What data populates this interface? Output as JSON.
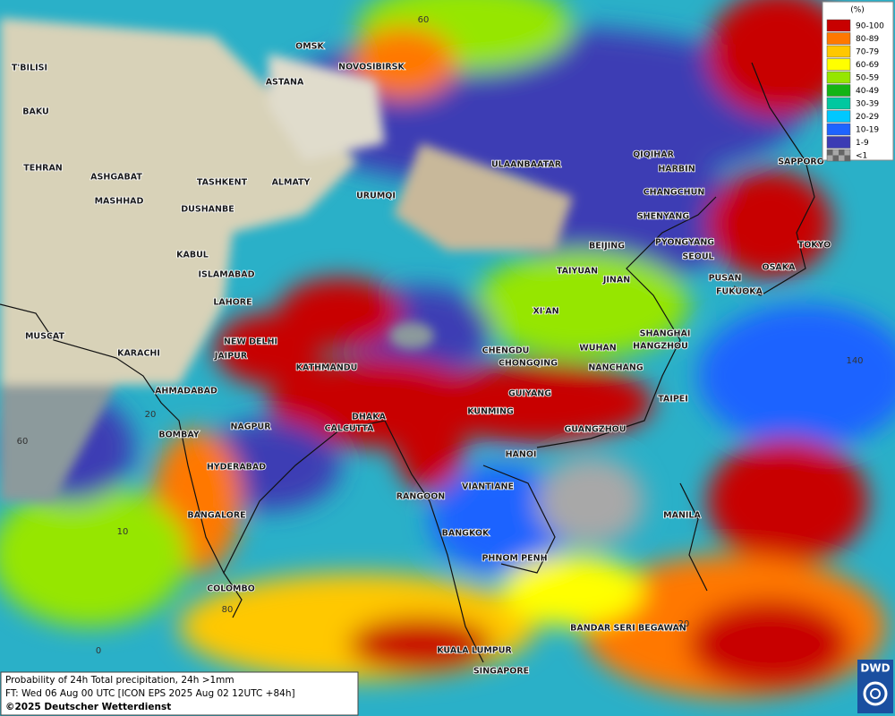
{
  "map": {
    "cities": [
      "OMSK",
      "NOVOSIBIRSK",
      "ASTANA",
      "T'BILISI",
      "BAKU",
      "TEHRAN",
      "ASHGABAT",
      "MASHHAD",
      "TASHKENT",
      "ALMATY",
      "URUMQI",
      "DUSHANBE",
      "KABUL",
      "ISLAMABAD",
      "LAHORE",
      "MUSCAT",
      "KARACHI",
      "NEW DELHI",
      "JAIPUR",
      "KATHMANDU",
      "AHMADABAD",
      "DHAKA",
      "CALCUTTA",
      "NAGPUR",
      "BOMBAY",
      "HYDERABAD",
      "BANGALORE",
      "COLOMBO",
      "ULAANBAATAR",
      "QIQIHAR",
      "HARBIN",
      "CHANGCHUN",
      "SHENYANG",
      "BEIJING",
      "PYONGYANG",
      "SEOUL",
      "SAPPORO",
      "TOKYO",
      "OSAKA",
      "PUSAN",
      "FUKUOKA",
      "TAIYUAN",
      "JINAN",
      "XI'AN",
      "CHENGDU",
      "CHONGQING",
      "WUHAN",
      "SHANGHAI",
      "HANGZHOU",
      "NANCHANG",
      "GUIYANG",
      "KUNMING",
      "TAIPEI",
      "GUANGZHOU",
      "HANOI",
      "VIANTIANE",
      "RANGOON",
      "BANGKOK",
      "PHNOM PENH",
      "MANILA",
      "BANDAR SERI BEGAWAN",
      "KUALA LUMPUR",
      "SINGAPORE"
    ],
    "grid_labels": [
      "60",
      "60",
      "20",
      "10",
      "0",
      "80",
      "20",
      "140"
    ]
  },
  "legend": {
    "title": "(%)",
    "entries": [
      {
        "label": "90-100",
        "color": "#c80000"
      },
      {
        "label": "80-89",
        "color": "#ff7800"
      },
      {
        "label": "70-79",
        "color": "#ffc800"
      },
      {
        "label": "60-69",
        "color": "#ffff00"
      },
      {
        "label": "50-59",
        "color": "#96e600"
      },
      {
        "label": "40-49",
        "color": "#14b414"
      },
      {
        "label": "30-39",
        "color": "#00c8a0"
      },
      {
        "label": "20-29",
        "color": "#00c8ff"
      },
      {
        "label": "10-19",
        "color": "#1e64ff"
      },
      {
        "label": "1-9",
        "color": "#3c3cb4"
      },
      {
        "label": "<1",
        "color": "#a8a8a8"
      }
    ]
  },
  "footer": {
    "lines": [
      "Probability of 24h Total precipitation, 24h >1mm",
      "FT: Wed 06 Aug 00 UTC [ICON EPS 2025 Aug 02 12UTC +84h]",
      "©2025 Deutscher Wetterdienst"
    ]
  },
  "logo": "DWD"
}
